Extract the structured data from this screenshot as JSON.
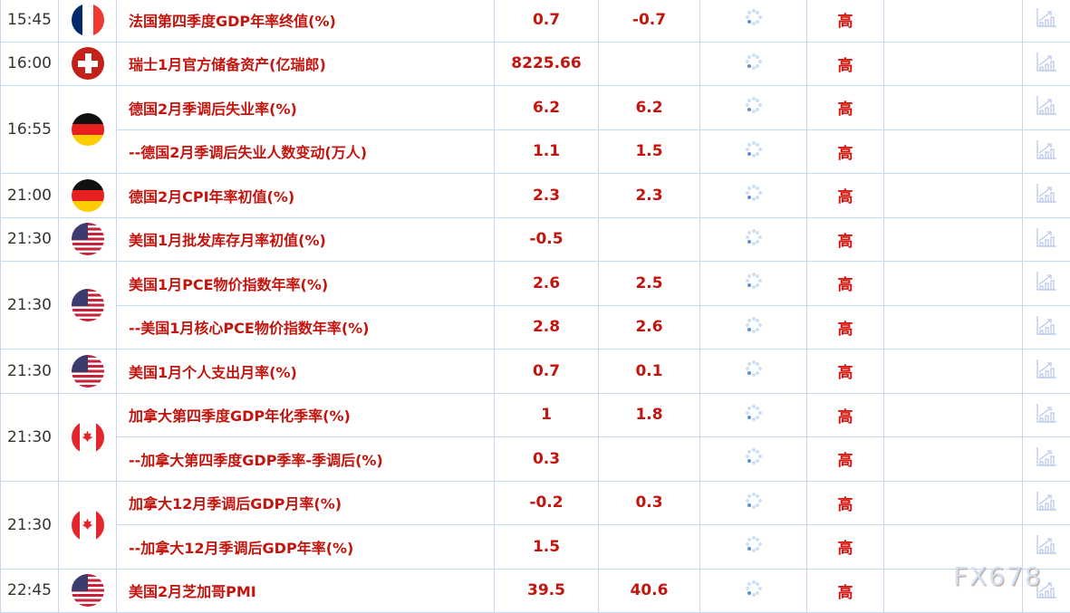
{
  "groups": [
    {
      "time": "15:45",
      "flag": "france",
      "rows": [
        {
          "name": "法国第四季度GDP年率终值(%)",
          "actual": "0.7",
          "forecast": "-0.7",
          "importance": "高"
        }
      ]
    },
    {
      "time": "16:00",
      "flag": "switzerland",
      "rows": [
        {
          "name": "瑞士1月官方储备资产(亿瑞郎)",
          "actual": "8225.66",
          "forecast": "",
          "importance": "高"
        }
      ]
    },
    {
      "time": "16:55",
      "flag": "germany",
      "rows": [
        {
          "name": "德国2月季调后失业率(%)",
          "actual": "6.2",
          "forecast": "6.2",
          "importance": "高"
        },
        {
          "name": "--德国2月季调后失业人数变动(万人)",
          "actual": "1.1",
          "forecast": "1.5",
          "importance": "高"
        }
      ]
    },
    {
      "time": "21:00",
      "flag": "germany",
      "rows": [
        {
          "name": "德国2月CPI年率初值(%)",
          "actual": "2.3",
          "forecast": "2.3",
          "importance": "高"
        }
      ]
    },
    {
      "time": "21:30",
      "flag": "usa",
      "rows": [
        {
          "name": "美国1月批发库存月率初值(%)",
          "actual": "-0.5",
          "forecast": "",
          "importance": "高"
        }
      ]
    },
    {
      "time": "21:30",
      "flag": "usa",
      "rows": [
        {
          "name": "美国1月PCE物价指数年率(%)",
          "actual": "2.6",
          "forecast": "2.5",
          "importance": "高"
        },
        {
          "name": "--美国1月核心PCE物价指数年率(%)",
          "actual": "2.8",
          "forecast": "2.6",
          "importance": "高"
        }
      ]
    },
    {
      "time": "21:30",
      "flag": "usa",
      "rows": [
        {
          "name": "美国1月个人支出月率(%)",
          "actual": "0.7",
          "forecast": "0.1",
          "importance": "高"
        }
      ]
    },
    {
      "time": "21:30",
      "flag": "canada",
      "rows": [
        {
          "name": "加拿大第四季度GDP年化季率(%)",
          "actual": "1",
          "forecast": "1.8",
          "importance": "高"
        },
        {
          "name": "--加拿大第四季度GDP季率-季调后(%)",
          "actual": "0.3",
          "forecast": "",
          "importance": "高"
        }
      ]
    },
    {
      "time": "21:30",
      "flag": "canada",
      "rows": [
        {
          "name": "加拿大12月季调后GDP月率(%)",
          "actual": "-0.2",
          "forecast": "0.3",
          "importance": "高"
        },
        {
          "name": "--加拿大12月季调后GDP年率(%)",
          "actual": "1.5",
          "forecast": "",
          "importance": "高"
        }
      ]
    },
    {
      "time": "22:45",
      "flag": "usa",
      "rows": [
        {
          "name": "美国2月芝加哥PMI",
          "actual": "39.5",
          "forecast": "40.6",
          "importance": "高"
        }
      ]
    }
  ],
  "watermark": "FX678"
}
